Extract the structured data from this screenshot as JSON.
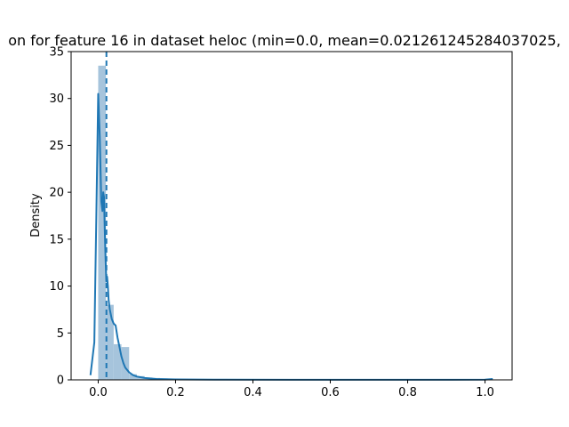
{
  "chart_data": {
    "type": "histogram",
    "title": "on for feature 16 in dataset heloc (min=0.0, mean=0.021261245284037025,",
    "xlabel": "",
    "ylabel": "Density",
    "xlim": [
      -0.07,
      1.07
    ],
    "ylim": [
      0,
      35
    ],
    "x_ticks": [
      "0.0",
      "0.2",
      "0.4",
      "0.6",
      "0.8",
      "1.0"
    ],
    "y_ticks": [
      "0",
      "5",
      "10",
      "15",
      "20",
      "25",
      "30",
      "35"
    ],
    "mean_line": 0.021261245284037025,
    "bars": [
      {
        "x0": 0.0,
        "x1": 0.02,
        "density": 33.5
      },
      {
        "x0": 0.02,
        "x1": 0.04,
        "density": 8.0
      },
      {
        "x0": 0.04,
        "x1": 0.06,
        "density": 3.8
      },
      {
        "x0": 0.06,
        "x1": 0.08,
        "density": 3.5
      },
      {
        "x0": 0.08,
        "x1": 0.1,
        "density": 0.6
      },
      {
        "x0": 0.1,
        "x1": 0.12,
        "density": 0.4
      },
      {
        "x0": 0.12,
        "x1": 0.14,
        "density": 0.25
      },
      {
        "x0": 0.14,
        "x1": 0.16,
        "density": 0.2
      },
      {
        "x0": 0.16,
        "x1": 0.18,
        "density": 0.15
      },
      {
        "x0": 0.18,
        "x1": 0.2,
        "density": 0.1
      },
      {
        "x0": 0.2,
        "x1": 0.25,
        "density": 0.05
      },
      {
        "x0": 0.25,
        "x1": 1.0,
        "density": 0.02
      }
    ],
    "kde": {
      "x": [
        -0.02,
        -0.01,
        -0.005,
        0.0,
        0.004,
        0.008,
        0.011,
        0.013,
        0.015,
        0.017,
        0.019,
        0.021,
        0.023,
        0.025,
        0.027,
        0.03,
        0.035,
        0.04,
        0.045,
        0.05,
        0.055,
        0.06,
        0.065,
        0.07,
        0.08,
        0.09,
        0.1,
        0.12,
        0.15,
        0.2,
        0.3,
        0.5,
        0.8,
        1.0,
        1.02
      ],
      "y": [
        0.5,
        4.0,
        17.0,
        30.5,
        26.0,
        19.0,
        18.0,
        20.0,
        19.5,
        16.0,
        13.0,
        10.5,
        11.0,
        10.0,
        8.5,
        7.5,
        6.5,
        6.0,
        5.8,
        4.5,
        3.5,
        2.5,
        1.8,
        1.3,
        0.8,
        0.5,
        0.35,
        0.2,
        0.1,
        0.05,
        0.02,
        0.01,
        0.01,
        0.02,
        0.1
      ]
    },
    "colors": {
      "bar": "#a6c4dc",
      "line": "#1f77b4",
      "axes": "#000000"
    },
    "grid": false,
    "legend": "none"
  }
}
